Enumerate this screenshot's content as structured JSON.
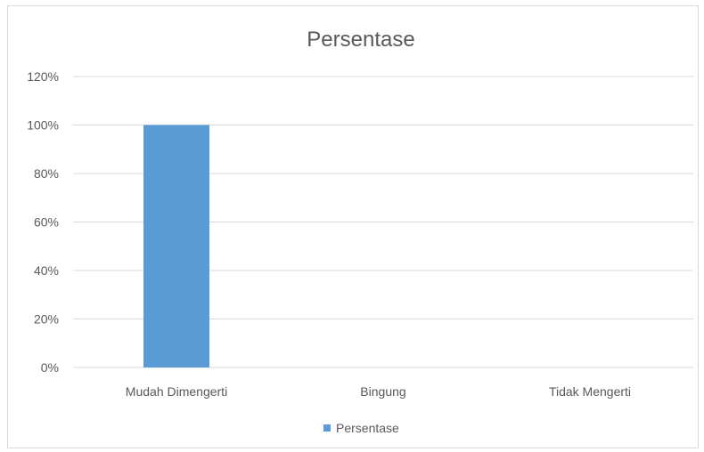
{
  "chart_data": {
    "type": "bar",
    "title": "Persentase",
    "categories": [
      "Mudah Dimengerti",
      "Bingung",
      "Tidak Mengerti"
    ],
    "series": [
      {
        "name": "Persentase",
        "values": [
          100,
          0,
          0
        ],
        "color": "#5b9bd5"
      }
    ],
    "ylim": [
      0,
      120
    ],
    "yticks": [
      "0%",
      "20%",
      "40%",
      "60%",
      "80%",
      "100%",
      "120%"
    ],
    "grid": true,
    "legend_position": "bottom"
  }
}
